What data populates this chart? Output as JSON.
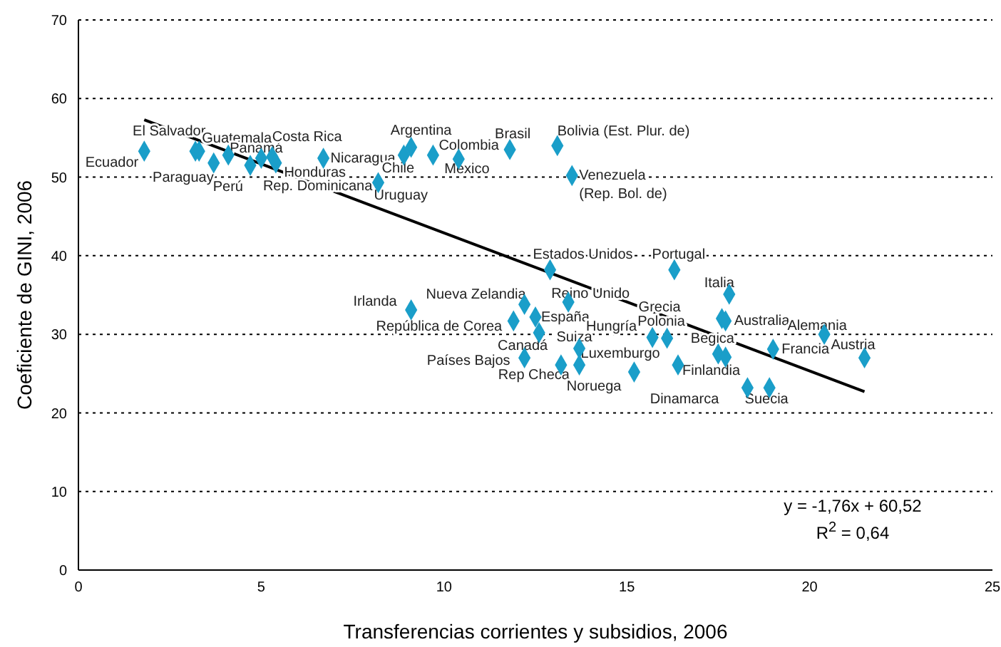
{
  "chart_data": {
    "type": "scatter",
    "xlabel": "Transferencias corrientes y subsidios, 2006",
    "ylabel": "Coeficiente de GINI, 2006",
    "xlim": [
      0,
      25
    ],
    "xticks": [
      0,
      5,
      10,
      15,
      20,
      25
    ],
    "ylim": [
      0,
      70
    ],
    "yticks": [
      0,
      10,
      20,
      30,
      40,
      50,
      60,
      70
    ],
    "grid": "y",
    "series": [
      {
        "type": "scatter",
        "marker": "diamond",
        "color": "#1a9ec9",
        "x": [
          1.8,
          3.2,
          3.3,
          3.7,
          4.1,
          4.7,
          5.0,
          5.3,
          5.4,
          6.7,
          8.2,
          8.9,
          9.1,
          9.7,
          10.4,
          11.8,
          13.1,
          13.5,
          12.9,
          9.1,
          12.2,
          13.4,
          11.9,
          12.5,
          13.7,
          12.6,
          12.2,
          13.2,
          13.7,
          15.2,
          15.7,
          16.1,
          17.6,
          17.7,
          16.3,
          17.8,
          16.4,
          17.5,
          17.7,
          19.0,
          18.3,
          18.9,
          20.4,
          21.5
        ],
        "values": [
          53.3,
          53.3,
          53.3,
          51.8,
          52.8,
          51.5,
          52.4,
          52.6,
          51.8,
          52.4,
          49.3,
          52.8,
          53.8,
          52.8,
          52.3,
          53.5,
          54.0,
          50.2,
          38.2,
          33.1,
          33.8,
          34.1,
          31.7,
          32.2,
          28.2,
          30.2,
          27.0,
          26.1,
          26.1,
          25.2,
          29.6,
          29.5,
          32.0,
          31.7,
          38.2,
          35.1,
          26.1,
          27.5,
          27.1,
          28.1,
          23.2,
          23.2,
          30.0,
          27.0
        ]
      },
      {
        "type": "line",
        "marker": "none",
        "color": "#000000",
        "x": [
          1.8,
          21.5
        ],
        "values": [
          57.3,
          22.7
        ]
      }
    ],
    "annotations": [
      "y = -1,76x + 60,52",
      "R$^{2}$ = 0,64",
      {
        "text": "Ecuador",
        "x": 1.8,
        "y": 53.3
      },
      {
        "text": "El Salvador",
        "x": 3.2,
        "y": 53.3
      },
      {
        "text": "Guatemala",
        "x": 3.3,
        "y": 53.3
      },
      {
        "text": "Paraguay",
        "x": 3.7,
        "y": 51.8
      },
      {
        "text": "Panamá",
        "x": 4.1,
        "y": 52.8
      },
      {
        "text": "Perú",
        "x": 4.7,
        "y": 51.5
      },
      {
        "text": "Honduras",
        "x": 5.0,
        "y": 52.4
      },
      {
        "text": "Costa Rica",
        "x": 5.3,
        "y": 52.6
      },
      {
        "text": "Rep. Dominicana",
        "x": 5.4,
        "y": 51.8
      },
      {
        "text": "Nicaragua",
        "x": 6.7,
        "y": 52.4
      },
      {
        "text": "Uruguay",
        "x": 8.2,
        "y": 49.3
      },
      {
        "text": "Chile",
        "x": 8.9,
        "y": 52.8
      },
      {
        "text": "Argentina",
        "x": 9.1,
        "y": 53.8
      },
      {
        "text": "Colombia",
        "x": 9.7,
        "y": 52.8
      },
      {
        "text": "México",
        "x": 10.4,
        "y": 52.3
      },
      {
        "text": "Brasil",
        "x": 11.8,
        "y": 53.5
      },
      {
        "text": "Bolivia (Est. Plur. de)",
        "x": 13.1,
        "y": 54.0
      },
      {
        "text": "Venezuela\n(Rep. Bol. de)",
        "x": 13.5,
        "y": 50.2
      },
      {
        "text": "Estados Unidos",
        "x": 12.9,
        "y": 38.2
      },
      {
        "text": "Irlanda",
        "x": 9.1,
        "y": 33.1
      },
      {
        "text": "Nueva Zelandia",
        "x": 12.2,
        "y": 33.8
      },
      {
        "text": "Reino Unido",
        "x": 13.4,
        "y": 34.1
      },
      {
        "text": "República de Corea",
        "x": 11.9,
        "y": 31.7
      },
      {
        "text": "España",
        "x": 12.5,
        "y": 32.2
      },
      {
        "text": "Suiza",
        "x": 13.7,
        "y": 28.2
      },
      {
        "text": "Canadá",
        "x": 12.6,
        "y": 30.2
      },
      {
        "text": "Países Bajos",
        "x": 12.2,
        "y": 27.0
      },
      {
        "text": "Rep Checa",
        "x": 13.2,
        "y": 26.1
      },
      {
        "text": "Luxemburgo",
        "x": 13.7,
        "y": 26.1
      },
      {
        "text": "Noruega",
        "x": 15.2,
        "y": 25.2
      },
      {
        "text": "Hungría",
        "x": 15.7,
        "y": 29.6
      },
      {
        "text": "Polonia",
        "x": 16.1,
        "y": 29.5
      },
      {
        "text": "Grecia",
        "x": 17.6,
        "y": 32.0
      },
      {
        "text": "Australia",
        "x": 17.7,
        "y": 31.7
      },
      {
        "text": "Portugal",
        "x": 16.3,
        "y": 38.2
      },
      {
        "text": "Italia",
        "x": 17.8,
        "y": 35.1
      },
      {
        "text": "Finlandia",
        "x": 16.4,
        "y": 26.1
      },
      {
        "text": "Begica",
        "x": 17.5,
        "y": 27.5
      },
      {
        "text": "Francia",
        "x": 19.0,
        "y": 28.1
      },
      {
        "text": "Dinamarca",
        "x": 18.3,
        "y": 23.2
      },
      {
        "text": "Suecia",
        "x": 18.9,
        "y": 23.2
      },
      {
        "text": "Alemania",
        "x": 20.4,
        "y": 30.0
      },
      {
        "text": "Austria",
        "x": 21.5,
        "y": 27.0
      }
    ]
  }
}
